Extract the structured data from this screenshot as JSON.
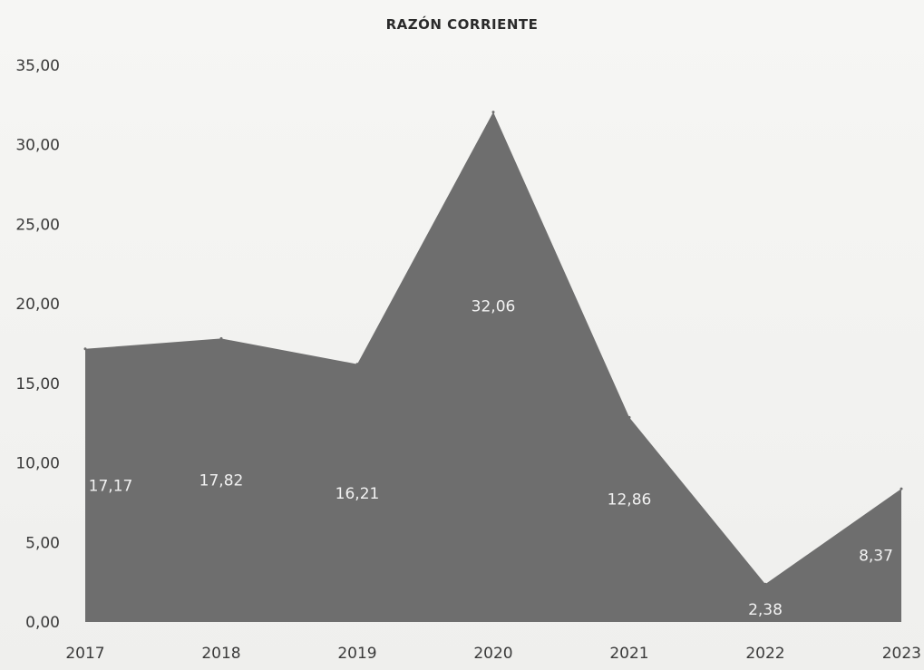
{
  "chart_data": {
    "type": "area",
    "title": "RAZÓN CORRIENTE",
    "xlabel": "",
    "ylabel": "",
    "categories": [
      "2017",
      "2018",
      "2019",
      "2020",
      "2021",
      "2022",
      "2023"
    ],
    "series": [
      {
        "values": [
          17.17,
          17.82,
          16.21,
          32.06,
          12.86,
          2.38,
          8.37
        ],
        "data_labels": [
          "17,17",
          "17,82",
          "16,21",
          "32,06",
          "12,86",
          "2,38",
          "8,37"
        ]
      }
    ],
    "ylim": [
      0,
      35
    ],
    "y_ticks": [
      "0,00",
      "5,00",
      "10,00",
      "15,00",
      "20,00",
      "25,00",
      "30,00",
      "35,00"
    ],
    "grid": false,
    "legend": "none",
    "colors": {
      "area_fill": "#6e6e6e",
      "label_text": "#f2f2f2",
      "axis_text": "#3a3a3a"
    }
  }
}
